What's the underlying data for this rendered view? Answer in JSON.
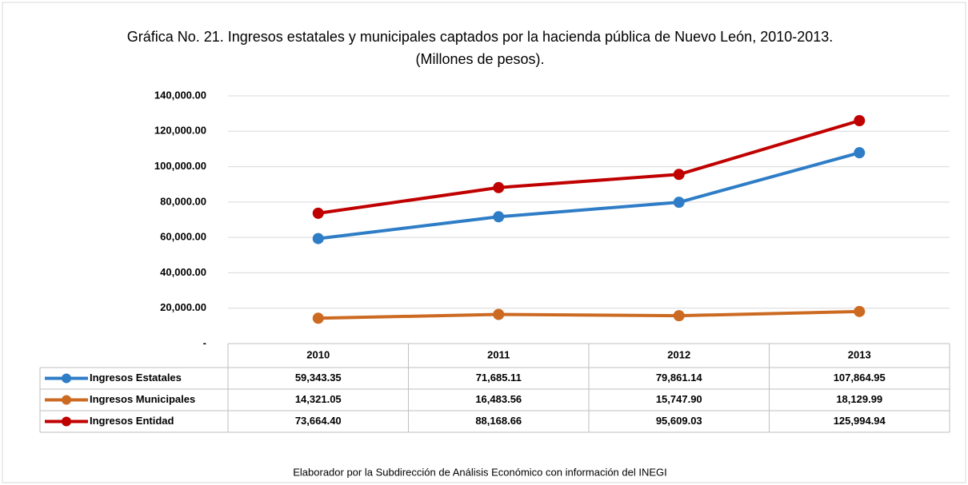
{
  "chart_data": {
    "type": "line",
    "title": "Gráfica No. 21. Ingresos estatales y municipales captados por la hacienda pública de Nuevo León, 2010-2013. (Millones de pesos).",
    "footnote": "Elaborador por la Subdirección de Análisis Económico con información del INEGI",
    "categories": [
      "2010",
      "2011",
      "2012",
      "2013"
    ],
    "series": [
      {
        "name": "Ingresos Estatales",
        "color": "#2e7dc6",
        "values": [
          59343.35,
          71685.11,
          79861.14,
          107864.95
        ],
        "value_labels": [
          "59,343.35",
          "71,685.11",
          "79,861.14",
          "107,864.95"
        ]
      },
      {
        "name": "Ingresos Municipales",
        "color": "#cc6a22",
        "values": [
          14321.05,
          16483.56,
          15747.9,
          18129.99
        ],
        "value_labels": [
          "14,321.05",
          "16,483.56",
          "15,747.90",
          "18,129.99"
        ]
      },
      {
        "name": "Ingresos Entidad",
        "color": "#c00000",
        "values": [
          73664.4,
          88168.66,
          95609.03,
          125994.94
        ],
        "value_labels": [
          "73,664.40",
          "88,168.66",
          "95,609.03",
          "125,994.94"
        ]
      }
    ],
    "ylim": [
      0,
      140000
    ],
    "yticks": [
      {
        "value": 0,
        "label": "-"
      },
      {
        "value": 20000,
        "label": "20,000.00"
      },
      {
        "value": 40000,
        "label": "40,000.00"
      },
      {
        "value": 60000,
        "label": "60,000.00"
      },
      {
        "value": 80000,
        "label": "80,000.00"
      },
      {
        "value": 100000,
        "label": "100,000.00"
      },
      {
        "value": 120000,
        "label": "120,000.00"
      },
      {
        "value": 140000,
        "label": "140,000.00"
      }
    ],
    "grid": true
  }
}
